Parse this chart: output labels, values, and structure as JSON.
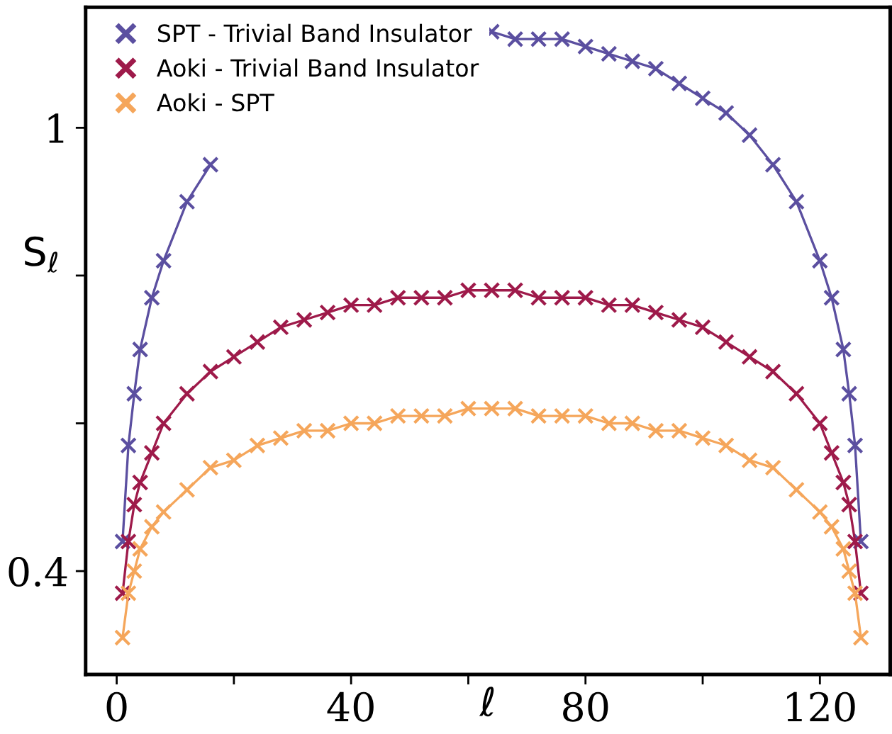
{
  "chart_data": {
    "type": "line",
    "xlabel": "ℓ",
    "ylabel": "S$_{ℓ}$",
    "x": [
      1,
      2,
      3,
      4,
      6,
      8,
      12,
      16,
      20,
      24,
      28,
      32,
      36,
      40,
      44,
      48,
      52,
      56,
      60,
      64,
      68,
      72,
      76,
      80,
      84,
      88,
      92,
      96,
      100,
      104,
      108,
      112,
      116,
      120,
      122,
      124,
      125,
      126,
      127
    ],
    "series": [
      {
        "name": "SPT - Trivial Band Insulator",
        "color": "#5b4fa0",
        "values": [
          0.44,
          0.57,
          0.64,
          0.7,
          0.77,
          0.82,
          0.9,
          0.95,
          null,
          null,
          null,
          null,
          null,
          null,
          null,
          null,
          null,
          null,
          null,
          1.13,
          1.12,
          1.12,
          1.12,
          1.11,
          1.1,
          1.09,
          1.08,
          1.06,
          1.04,
          1.02,
          0.99,
          0.95,
          0.9,
          0.82,
          0.77,
          0.7,
          0.64,
          0.57,
          0.44
        ]
      },
      {
        "name": "Aoki - Trivial Band Insulator",
        "color": "#9e1a4a",
        "values": [
          0.37,
          0.44,
          0.49,
          0.52,
          0.56,
          0.6,
          0.64,
          0.67,
          0.69,
          0.71,
          0.73,
          0.74,
          0.75,
          0.76,
          0.76,
          0.77,
          0.77,
          0.77,
          0.78,
          0.78,
          0.78,
          0.77,
          0.77,
          0.77,
          0.76,
          0.76,
          0.75,
          0.74,
          0.73,
          0.71,
          0.69,
          0.67,
          0.64,
          0.6,
          0.56,
          0.52,
          0.49,
          0.44,
          0.37
        ]
      },
      {
        "name": "Aoki - SPT",
        "color": "#f5a65b",
        "values": [
          0.31,
          0.37,
          0.4,
          0.43,
          0.46,
          0.48,
          0.51,
          0.54,
          0.55,
          0.57,
          0.58,
          0.59,
          0.59,
          0.6,
          0.6,
          0.61,
          0.61,
          0.61,
          0.62,
          0.62,
          0.62,
          0.61,
          0.61,
          0.61,
          0.6,
          0.6,
          0.59,
          0.59,
          0.58,
          0.57,
          0.55,
          0.54,
          0.51,
          0.48,
          0.46,
          0.43,
          0.4,
          0.37,
          0.31
        ]
      }
    ],
    "xlim": [
      -5.3,
      132
    ],
    "ylim": [
      0.26,
      1.163
    ],
    "xticks": [
      0,
      {
        "value": 20,
        "label": null
      },
      40,
      {
        "value": 60,
        "label": null
      },
      80,
      {
        "value": 100,
        "label": null
      },
      120
    ],
    "yticks": [
      {
        "value": 1,
        "label": "1"
      },
      {
        "value": 0.8,
        "label": null
      },
      {
        "value": 0.6,
        "label": null
      },
      {
        "value": 0.4,
        "label": "0.4"
      }
    ],
    "marker": "cross",
    "line_style": "solid",
    "legend": "top left",
    "grid": false
  }
}
